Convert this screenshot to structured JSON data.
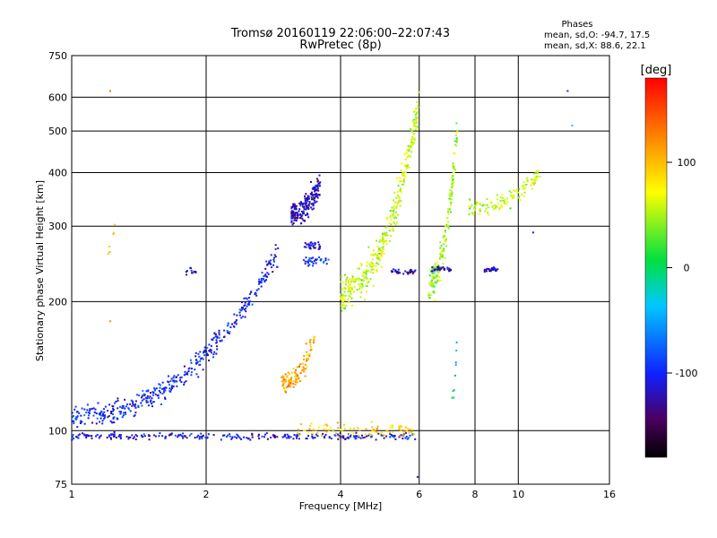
{
  "chart_data": {
    "type": "scatter",
    "title": "Tromsø 20160119 22:06:00–22:07:43",
    "subtitle": "RwPretec (8p)",
    "xlabel": "Frequency [MHz]",
    "ylabel": "Stationary phase Virtual Height [km]",
    "x_scale": "log",
    "y_scale": "log",
    "xlim": [
      1,
      16
    ],
    "ylim": [
      75,
      750
    ],
    "x_ticks": [
      1,
      2,
      4,
      6,
      8,
      10,
      16
    ],
    "y_ticks": [
      75,
      100,
      200,
      300,
      400,
      500,
      600,
      750
    ],
    "grid": true,
    "phases_box": {
      "title": "Phases",
      "line_o": "mean, sd,O: -94.7, 17.5",
      "line_x": "mean, sd,X:  88.6, 22.1"
    },
    "colorbar": {
      "label": "[deg]",
      "ticks": [
        100,
        0,
        -100
      ],
      "range": [
        -180,
        180
      ]
    },
    "traces": [
      {
        "name": "",
        "x_range": [
          1.0,
          5.9
        ],
        "y": 97,
        "phase": -110,
        "count": 260,
        "y_jitter": 0.015
      },
      {
        "name": "",
        "x_range": [
          3.2,
          5.9
        ],
        "y": 100,
        "phase": 90,
        "count": 90,
        "y_jitter": 0.03
      },
      {
        "name": "",
        "x_range": [
          1.0,
          2.9
        ],
        "y_from": 108,
        "y_to": 260,
        "phase": -100,
        "count": 420,
        "y_jitter": 0.05
      },
      {
        "name": "",
        "x_range": [
          2.95,
          3.5
        ],
        "y_from": 128,
        "y_to": 165,
        "phase": 110,
        "count": 110,
        "y_jitter": 0.05
      },
      {
        "name": "",
        "x_range": [
          3.1,
          3.6
        ],
        "y_from": 320,
        "y_to": 380,
        "phase": -120,
        "count": 200,
        "y_jitter": 0.06
      },
      {
        "name": "",
        "x_range": [
          3.3,
          3.6
        ],
        "y": 270,
        "phase": -110,
        "count": 30,
        "y_jitter": 0.02
      },
      {
        "name": "",
        "x_range": [
          3.3,
          3.8
        ],
        "y": 250,
        "phase": -100,
        "count": 35,
        "y_jitter": 0.02
      },
      {
        "name": "",
        "x_range": [
          4.0,
          6.0
        ],
        "y_from": 210,
        "y_to": 580,
        "phase": 60,
        "count": 380,
        "y_jitter": 0.08
      },
      {
        "name": "",
        "x_range": [
          5.2,
          5.9
        ],
        "y": 235,
        "phase": -130,
        "count": 30,
        "y_jitter": 0.01
      },
      {
        "name": "",
        "x_range": [
          6.3,
          7.3
        ],
        "y_from": 220,
        "y_to": 500,
        "phase": 50,
        "count": 160,
        "y_jitter": 0.08
      },
      {
        "name": "",
        "x_range": [
          6.4,
          7.1
        ],
        "y": 238,
        "phase": -120,
        "count": 35,
        "y_jitter": 0.01
      },
      {
        "name": "",
        "x_range": [
          7.7,
          11.2
        ],
        "y_from": 330,
        "y_to": 400,
        "phase": 60,
        "count": 120,
        "y_jitter": 0.04
      },
      {
        "name": "",
        "x_range": [
          8.4,
          9.0
        ],
        "y": 238,
        "phase": -115,
        "count": 25,
        "y_jitter": 0.01
      },
      {
        "name": "",
        "x_range": [
          7.1,
          7.3
        ],
        "y_from": 120,
        "y_to": 170,
        "phase": -20,
        "count": 10,
        "y_jitter": 0.03
      },
      {
        "name": "",
        "x_range": [
          1.8,
          1.9
        ],
        "y": 235,
        "phase": -110,
        "count": 12,
        "y_jitter": 0.02
      },
      {
        "name": "",
        "x_range": [
          1.2,
          1.25
        ],
        "y_from": 260,
        "y_to": 310,
        "phase": 120,
        "count": 6,
        "y_jitter": 0.02
      }
    ],
    "outliers": [
      {
        "x": 1.22,
        "y": 620,
        "phase": 130
      },
      {
        "x": 12.9,
        "y": 620,
        "phase": -100
      },
      {
        "x": 13.2,
        "y": 515,
        "phase": -30
      },
      {
        "x": 5.95,
        "y": 78,
        "phase": -120
      },
      {
        "x": 1.22,
        "y": 180,
        "phase": 120
      },
      {
        "x": 10.8,
        "y": 290,
        "phase": -110
      }
    ]
  }
}
